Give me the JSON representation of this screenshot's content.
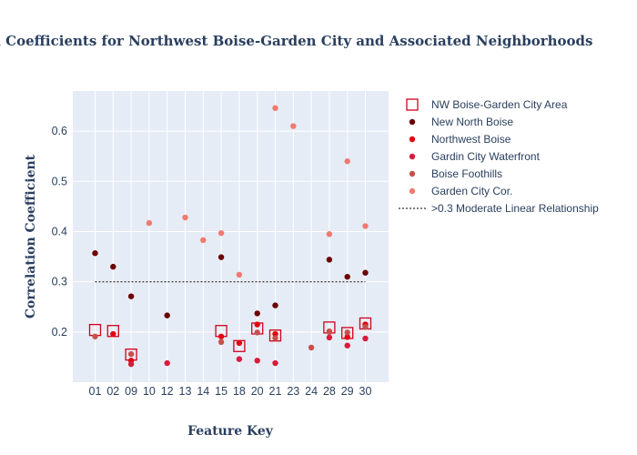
{
  "chart_data": {
    "type": "scatter",
    "title": "on Coefficients for Northwest Boise-Garden City and Associated Neighborhoods",
    "xlabel": "Feature Key",
    "ylabel": "Correlation Coefficient",
    "categories": [
      "01",
      "02",
      "09",
      "10",
      "12",
      "13",
      "14",
      "15",
      "18",
      "20",
      "21",
      "23",
      "24",
      "28",
      "29",
      "30"
    ],
    "ylim": [
      0.1,
      0.68
    ],
    "yticks": [
      0.2,
      0.3,
      0.4,
      0.5,
      0.6
    ],
    "ytick_labels": [
      "0.2",
      "0.3",
      "0.4",
      "0.5",
      "0.6"
    ],
    "grid": true,
    "legend_position": "right",
    "series": [
      {
        "name": "NW Boise-Garden City Area",
        "marker": "open-square",
        "color": "#d0021b",
        "points": [
          [
            "01",
            0.204
          ],
          [
            "02",
            0.202
          ],
          [
            "09",
            0.155
          ],
          [
            "15",
            0.202
          ],
          [
            "18",
            0.172
          ],
          [
            "20",
            0.207
          ],
          [
            "21",
            0.193
          ],
          [
            "28",
            0.209
          ],
          [
            "29",
            0.198
          ],
          [
            "30",
            0.217
          ]
        ]
      },
      {
        "name": "New North Boise",
        "marker": "circle",
        "color": "#6b0000",
        "points": [
          [
            "01",
            0.357
          ],
          [
            "02",
            0.33
          ],
          [
            "09",
            0.271
          ],
          [
            "12",
            0.233
          ],
          [
            "15",
            0.349
          ],
          [
            "20",
            0.237
          ],
          [
            "21",
            0.253
          ],
          [
            "28",
            0.344
          ],
          [
            "29",
            0.31
          ],
          [
            "30",
            0.318
          ]
        ]
      },
      {
        "name": "Northwest Boise",
        "marker": "circle",
        "color": "#e6000f",
        "points": [
          [
            "02",
            0.196
          ],
          [
            "09",
            0.143
          ],
          [
            "15",
            0.191
          ],
          [
            "18",
            0.178
          ],
          [
            "20",
            0.215
          ],
          [
            "21",
            0.196
          ],
          [
            "28",
            0.201
          ],
          [
            "29",
            0.19
          ],
          [
            "30",
            0.215
          ]
        ]
      },
      {
        "name": "Gardin City Waterfront",
        "marker": "circle",
        "color": "#d81b3c",
        "points": [
          [
            "09",
            0.136
          ],
          [
            "12",
            0.138
          ],
          [
            "18",
            0.146
          ],
          [
            "20",
            0.143
          ],
          [
            "21",
            0.138
          ],
          [
            "28",
            0.189
          ],
          [
            "29",
            0.173
          ],
          [
            "30",
            0.187
          ]
        ]
      },
      {
        "name": "Boise Foothills",
        "marker": "circle",
        "color": "#c8504a",
        "points": [
          [
            "01",
            0.191
          ],
          [
            "09",
            0.156
          ],
          [
            "15",
            0.18
          ],
          [
            "20",
            0.199
          ],
          [
            "21",
            0.188
          ],
          [
            "24",
            0.169
          ],
          [
            "28",
            0.2
          ],
          [
            "29",
            0.199
          ],
          [
            "30",
            0.21
          ]
        ]
      },
      {
        "name": "Garden City Cor.",
        "marker": "circle",
        "color": "#f07a70",
        "points": [
          [
            "10",
            0.417
          ],
          [
            "13",
            0.428
          ],
          [
            "14",
            0.383
          ],
          [
            "15",
            0.397
          ],
          [
            "18",
            0.314
          ],
          [
            "21",
            0.646
          ],
          [
            "23",
            0.61
          ],
          [
            "28",
            0.395
          ],
          [
            "29",
            0.54
          ],
          [
            "30",
            0.411
          ]
        ]
      }
    ],
    "reference_line": {
      "name": ">0.3 Moderate Linear Relationship",
      "y": 0.3,
      "from": "01",
      "to": "30",
      "style": "dotted",
      "color": "#333333"
    }
  }
}
